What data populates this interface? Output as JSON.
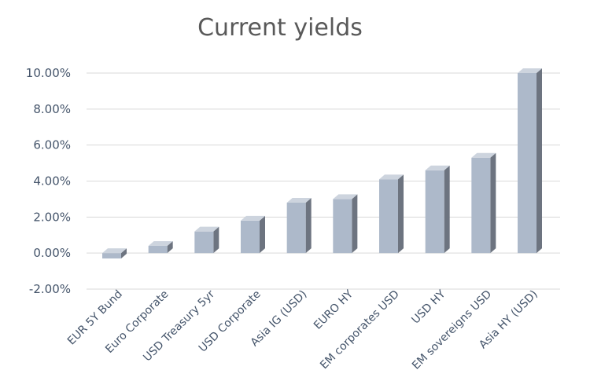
{
  "chart_data": {
    "type": "bar",
    "title": "Current yields",
    "categories": [
      "EUR 5Y Bund",
      "Euro Corporate",
      "USD Treasury 5yr",
      "USD Corporate",
      "Asia IG (USD)",
      "EURO HY",
      "EM corporates USD",
      "USD HY",
      "EM sovereigns USD",
      "Asia HY (USD)"
    ],
    "values": [
      -0.3,
      0.4,
      1.2,
      1.8,
      2.8,
      3.0,
      4.1,
      4.6,
      5.3,
      10.0
    ],
    "ylim": [
      -2,
      10
    ],
    "yticks": [
      -2,
      0,
      2,
      4,
      6,
      8,
      10
    ],
    "ytick_labels": [
      "-2.00%",
      "0.00%",
      "2.00%",
      "4.00%",
      "6.00%",
      "8.00%",
      "10.00%"
    ],
    "xlabel": "",
    "ylabel": "",
    "grid": true,
    "legend": "none",
    "colors": {
      "bar_front": "#adb9ca",
      "bar_side": "#6d7480",
      "bar_top": "#cdd4de",
      "gridline": "#d9d9d9",
      "tick_text": "#44546a",
      "title_text": "#595959"
    }
  }
}
